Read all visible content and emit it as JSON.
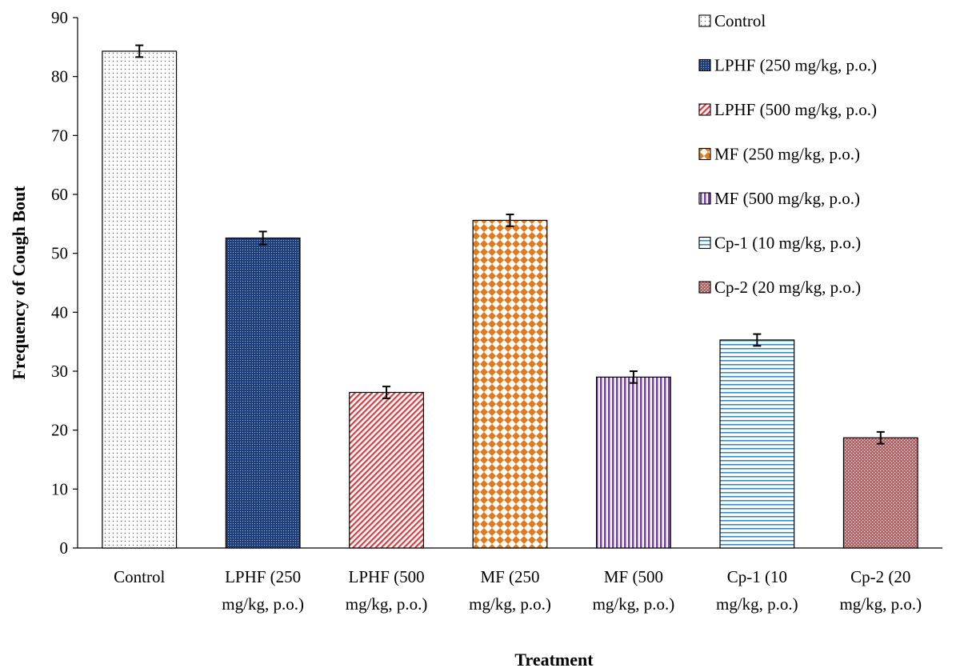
{
  "chart_data": {
    "type": "bar",
    "title": "",
    "xlabel": "Treatment",
    "ylabel": "Frequency of Cough Bout",
    "ylim": [
      0,
      90
    ],
    "yticks": [
      0,
      10,
      20,
      30,
      40,
      50,
      60,
      70,
      80,
      90
    ],
    "grid": false,
    "legend_position": "top-right",
    "categories": [
      "Control",
      "LPHF (250 mg/kg, p.o.)",
      "LPHF (500 mg/kg, p.o.)",
      "MF (250 mg/kg, p.o.)",
      "MF (500 mg/kg, p.o.)",
      "Cp-1 (10 mg/kg, p.o.)",
      "Cp-2 (20 mg/kg, p.o.)"
    ],
    "category_lines": [
      [
        "Control"
      ],
      [
        "LPHF (250",
        "mg/kg, p.o.)"
      ],
      [
        "LPHF (500",
        "mg/kg, p.o.)"
      ],
      [
        "MF (250",
        "mg/kg, p.o.)"
      ],
      [
        "MF (500",
        "mg/kg, p.o.)"
      ],
      [
        "Cp-1 (10",
        "mg/kg, p.o.)"
      ],
      [
        "Cp-2 (20",
        "mg/kg, p.o.)"
      ]
    ],
    "values": [
      84.3,
      52.6,
      26.4,
      55.6,
      29.0,
      35.3,
      18.7
    ],
    "errors": [
      1.0,
      1.1,
      1.0,
      1.0,
      1.0,
      1.0,
      1.0
    ],
    "series": [
      {
        "name": "Control",
        "value": 84.3,
        "error": 1.0,
        "pattern": "dots",
        "fill": "#ffffff",
        "ink": "#555555"
      },
      {
        "name": "LPHF (250 mg/kg, p.o.)",
        "value": 52.6,
        "error": 1.1,
        "pattern": "fine-grid",
        "fill": "#1f3f7a",
        "ink": "#a9b8d6"
      },
      {
        "name": "LPHF (500 mg/kg, p.o.)",
        "value": 26.4,
        "error": 1.0,
        "pattern": "diagonal",
        "fill": "#ffffff",
        "ink": "#e0393e"
      },
      {
        "name": "MF (250 mg/kg, p.o.)",
        "value": 55.6,
        "error": 1.0,
        "pattern": "diamonds",
        "fill": "#ffffff",
        "ink": "#e07a1f"
      },
      {
        "name": "MF (500 mg/kg, p.o.)",
        "value": 29.0,
        "error": 1.0,
        "pattern": "vertical",
        "fill": "#ffffff",
        "ink": "#7b3fa8"
      },
      {
        "name": "Cp-1 (10 mg/kg, p.o.)",
        "value": 35.3,
        "error": 1.0,
        "pattern": "horizontal",
        "fill": "#ffffff",
        "ink": "#3a8cc7"
      },
      {
        "name": "Cp-2 (20 mg/kg, p.o.)",
        "value": 18.7,
        "error": 1.0,
        "pattern": "checker",
        "fill": "#e84a4f",
        "ink": "#ffffff"
      }
    ]
  }
}
